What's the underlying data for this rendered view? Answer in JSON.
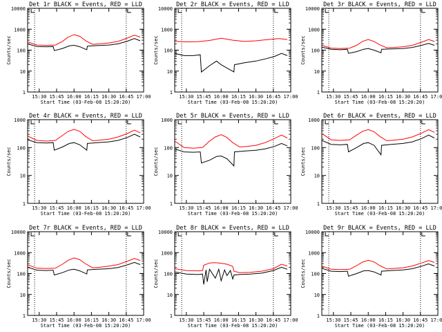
{
  "chart_data": [
    {
      "type": "line",
      "title": "Det 1r BLACK = Events, RED = LLD",
      "xlabel": "Start Time (03-Feb-08 15:20:20)",
      "ylabel": "Counts/sec",
      "yscale": "log",
      "ylim": [
        1,
        10000
      ],
      "xlim": [
        "15:20",
        "17:00"
      ],
      "x_ticks": [
        "15:30",
        "15:45",
        "16:00",
        "16:15",
        "16:30",
        "16:45",
        "17:00"
      ],
      "y_ticks": [
        "1",
        "10",
        "100",
        "1000",
        "10000"
      ],
      "markers": [
        "15:26",
        "16:45"
      ],
      "grid": false,
      "legend": "none",
      "series": [
        {
          "color": "#ff0000",
          "x": [
            "15:20",
            "15:28",
            "15:36",
            "15:44",
            "15:50",
            "15:55",
            "16:00",
            "16:05",
            "16:10",
            "16:16",
            "16:22",
            "16:30",
            "16:38",
            "16:46",
            "16:52",
            "16:57"
          ],
          "values": [
            250,
            175,
            170,
            175,
            260,
            420,
            550,
            460,
            280,
            190,
            200,
            220,
            260,
            380,
            520,
            420
          ]
        },
        {
          "color": "#000000",
          "x": [
            "15:20",
            "15:28",
            "15:36",
            "15:42",
            "15:43",
            "15:50",
            "15:56",
            "16:00",
            "16:05",
            "16:11",
            "16:11.5",
            "16:20",
            "16:30",
            "16:38",
            "16:46",
            "16:52",
            "16:57"
          ],
          "values": [
            200,
            150,
            145,
            150,
            95,
            120,
            160,
            170,
            145,
            105,
            155,
            165,
            175,
            200,
            270,
            360,
            280
          ]
        }
      ]
    },
    {
      "type": "line",
      "title": "Det 2r BLACK = Events, RED = LLD",
      "xlabel": "Start Time (03-Feb-08 15:20:20)",
      "ylabel": "Counts/sec",
      "yscale": "log",
      "ylim": [
        1,
        10000
      ],
      "xlim": [
        "15:20",
        "17:00"
      ],
      "x_ticks": [
        "15:30",
        "15:45",
        "16:00",
        "16:15",
        "16:30",
        "16:45",
        "17:00"
      ],
      "y_ticks": [
        "1",
        "10",
        "100",
        "1000",
        "10000"
      ],
      "markers": [
        "15:26",
        "16:45"
      ],
      "grid": false,
      "legend": "none",
      "series": [
        {
          "color": "#ff0000",
          "x": [
            "15:20",
            "15:30",
            "15:40",
            "15:50",
            "16:00",
            "16:10",
            "16:20",
            "16:30",
            "16:40",
            "16:50",
            "16:57"
          ],
          "values": [
            260,
            250,
            255,
            290,
            370,
            300,
            260,
            280,
            320,
            360,
            320
          ]
        },
        {
          "color": "#000000",
          "x": [
            "15:20",
            "15:28",
            "15:36",
            "15:42",
            "15:43",
            "15:50",
            "15:56",
            "16:00",
            "16:05",
            "16:11",
            "16:11.5",
            "16:20",
            "16:30",
            "16:38",
            "16:46",
            "16:52",
            "16:57"
          ],
          "values": [
            70,
            55,
            55,
            60,
            9,
            18,
            30,
            20,
            14,
            9,
            20,
            25,
            30,
            38,
            50,
            70,
            55
          ]
        }
      ]
    },
    {
      "type": "line",
      "title": "Det 3r BLACK = Events, RED = LLD",
      "xlabel": "Start Time (03-Feb-08 15:20:20)",
      "ylabel": "Counts/sec",
      "yscale": "log",
      "ylim": [
        1,
        10000
      ],
      "xlim": [
        "15:20",
        "17:00"
      ],
      "x_ticks": [
        "15:30",
        "15:45",
        "16:00",
        "16:15",
        "16:30",
        "16:45",
        "17:00"
      ],
      "y_ticks": [
        "1",
        "10",
        "100",
        "1000",
        "10000"
      ],
      "markers": [
        "15:26",
        "16:45"
      ],
      "grid": false,
      "legend": "none",
      "series": [
        {
          "color": "#ff0000",
          "x": [
            "15:20",
            "15:28",
            "15:36",
            "15:44",
            "15:50",
            "15:55",
            "16:00",
            "16:05",
            "16:10",
            "16:16",
            "16:22",
            "16:30",
            "16:38",
            "16:46",
            "16:52",
            "16:57"
          ],
          "values": [
            170,
            125,
            120,
            125,
            170,
            260,
            320,
            260,
            180,
            130,
            135,
            145,
            170,
            240,
            320,
            260
          ]
        },
        {
          "color": "#000000",
          "x": [
            "15:20",
            "15:28",
            "15:36",
            "15:42",
            "15:43",
            "15:50",
            "15:56",
            "16:00",
            "16:05",
            "16:11",
            "16:11.5",
            "16:20",
            "16:30",
            "16:38",
            "16:46",
            "16:52",
            "16:57"
          ],
          "values": [
            140,
            110,
            105,
            110,
            70,
            85,
            110,
            120,
            100,
            75,
            110,
            115,
            120,
            135,
            170,
            210,
            170
          ]
        }
      ]
    },
    {
      "type": "line",
      "title": "Det 4r BLACK = Events, RED = LLD",
      "xlabel": "Start Time (03-Feb-08 15:20:20)",
      "ylabel": "Counts/sec",
      "yscale": "log",
      "ylim": [
        1,
        1000
      ],
      "xlim": [
        "15:20",
        "17:00"
      ],
      "x_ticks": [
        "15:30",
        "15:45",
        "16:00",
        "16:15",
        "16:30",
        "16:45",
        "17:00"
      ],
      "y_ticks": [
        "1",
        "10",
        "100",
        "1000"
      ],
      "markers": [
        "15:26",
        "16:45"
      ],
      "grid": false,
      "legend": "none",
      "series": [
        {
          "color": "#ff0000",
          "x": [
            "15:20",
            "15:28",
            "15:36",
            "15:44",
            "15:50",
            "15:55",
            "16:00",
            "16:05",
            "16:10",
            "16:16",
            "16:22",
            "16:30",
            "16:38",
            "16:46",
            "16:52",
            "16:57"
          ],
          "values": [
            260,
            180,
            170,
            180,
            270,
            380,
            450,
            380,
            250,
            175,
            185,
            200,
            240,
            320,
            420,
            340
          ]
        },
        {
          "color": "#000000",
          "x": [
            "15:20",
            "15:28",
            "15:36",
            "15:42",
            "15:43",
            "15:50",
            "15:56",
            "16:00",
            "16:05",
            "16:11",
            "16:11.5",
            "16:20",
            "16:30",
            "16:38",
            "16:46",
            "16:52",
            "16:57"
          ],
          "values": [
            190,
            150,
            145,
            150,
            80,
            105,
            140,
            150,
            125,
            80,
            140,
            150,
            160,
            180,
            230,
            300,
            240
          ]
        }
      ]
    },
    {
      "type": "line",
      "title": "Det 5r BLACK = Events, RED = LLD",
      "xlabel": "Start Time (03-Feb-08 15:20:20)",
      "ylabel": "Counts/sec",
      "yscale": "log",
      "ylim": [
        1,
        1000
      ],
      "xlim": [
        "15:20",
        "17:00"
      ],
      "x_ticks": [
        "15:30",
        "15:45",
        "16:00",
        "16:15",
        "16:30",
        "16:45",
        "17:00"
      ],
      "y_ticks": [
        "1",
        "10",
        "100",
        "1000"
      ],
      "markers": [
        "15:26",
        "16:45"
      ],
      "grid": false,
      "legend": "none",
      "series": [
        {
          "color": "#ff0000",
          "x": [
            "15:20",
            "15:28",
            "15:36",
            "15:44",
            "15:50",
            "15:55",
            "16:00",
            "16:05",
            "16:10",
            "16:16",
            "16:22",
            "16:30",
            "16:38",
            "16:46",
            "16:52",
            "16:57"
          ],
          "values": [
            170,
            100,
            95,
            100,
            170,
            240,
            290,
            230,
            150,
            105,
            110,
            120,
            150,
            210,
            280,
            220
          ]
        },
        {
          "color": "#000000",
          "x": [
            "15:20",
            "15:28",
            "15:36",
            "15:42",
            "15:43",
            "15:50",
            "15:56",
            "16:00",
            "16:05",
            "16:11",
            "16:11.5",
            "16:20",
            "16:30",
            "16:38",
            "16:46",
            "16:52",
            "16:57"
          ],
          "values": [
            90,
            70,
            68,
            70,
            28,
            35,
            48,
            50,
            40,
            22,
            70,
            75,
            80,
            90,
            110,
            140,
            115
          ]
        }
      ]
    },
    {
      "type": "line",
      "title": "Det 6r BLACK = Events, RED = LLD",
      "xlabel": "Start Time (03-Feb-08 15:20:20)",
      "ylabel": "Counts/sec",
      "yscale": "log",
      "ylim": [
        1,
        1000
      ],
      "xlim": [
        "15:20",
        "17:00"
      ],
      "x_ticks": [
        "15:30",
        "15:45",
        "16:00",
        "16:15",
        "16:30",
        "16:45",
        "17:00"
      ],
      "y_ticks": [
        "1",
        "10",
        "100",
        "1000"
      ],
      "markers": [
        "15:26",
        "16:45"
      ],
      "grid": false,
      "legend": "none",
      "series": [
        {
          "color": "#ff0000",
          "x": [
            "15:20",
            "15:28",
            "15:36",
            "15:44",
            "15:50",
            "15:55",
            "16:00",
            "16:05",
            "16:10",
            "16:16",
            "16:22",
            "16:30",
            "16:38",
            "16:46",
            "16:52",
            "16:57"
          ],
          "values": [
            320,
            190,
            180,
            190,
            280,
            380,
            440,
            370,
            250,
            175,
            185,
            200,
            240,
            330,
            440,
            350
          ]
        },
        {
          "color": "#000000",
          "x": [
            "15:20",
            "15:28",
            "15:36",
            "15:42",
            "15:43",
            "15:50",
            "15:56",
            "16:00",
            "16:05",
            "16:11",
            "16:11.5",
            "16:20",
            "16:30",
            "16:38",
            "16:46",
            "16:52",
            "16:57"
          ],
          "values": [
            180,
            130,
            125,
            130,
            70,
            100,
            140,
            150,
            120,
            55,
            120,
            130,
            140,
            160,
            210,
            280,
            220
          ]
        }
      ]
    },
    {
      "type": "line",
      "title": "Det 7r BLACK = Events, RED = LLD",
      "xlabel": "Start Time (03-Feb-08 15:20:20)",
      "ylabel": "Counts/sec",
      "yscale": "log",
      "ylim": [
        1,
        10000
      ],
      "xlim": [
        "15:20",
        "17:00"
      ],
      "x_ticks": [
        "15:30",
        "15:45",
        "16:00",
        "16:15",
        "16:30",
        "16:45",
        "17:00"
      ],
      "y_ticks": [
        "1",
        "10",
        "100",
        "1000",
        "10000"
      ],
      "markers": [
        "15:26",
        "16:45"
      ],
      "grid": false,
      "legend": "none",
      "series": [
        {
          "color": "#ff0000",
          "x": [
            "15:20",
            "15:28",
            "15:36",
            "15:44",
            "15:50",
            "15:55",
            "16:00",
            "16:05",
            "16:10",
            "16:16",
            "16:22",
            "16:30",
            "16:38",
            "16:46",
            "16:52",
            "16:57"
          ],
          "values": [
            260,
            180,
            175,
            180,
            280,
            430,
            560,
            460,
            290,
            190,
            200,
            225,
            270,
            390,
            530,
            420
          ]
        },
        {
          "color": "#000000",
          "x": [
            "15:20",
            "15:28",
            "15:36",
            "15:42",
            "15:43",
            "15:50",
            "15:56",
            "16:00",
            "16:05",
            "16:11",
            "16:11.5",
            "16:20",
            "16:30",
            "16:38",
            "16:46",
            "16:52",
            "16:57"
          ],
          "values": [
            200,
            145,
            140,
            145,
            85,
            110,
            150,
            160,
            135,
            95,
            150,
            160,
            170,
            195,
            260,
            340,
            270
          ]
        }
      ]
    },
    {
      "type": "line",
      "title": "Det 8r BLACK = Events, RED = LLD",
      "xlabel": "Start Time (03-Feb-08 15:20:20)",
      "ylabel": "Counts/sec",
      "yscale": "log",
      "ylim": [
        1,
        10000
      ],
      "xlim": [
        "15:20",
        "17:00"
      ],
      "x_ticks": [
        "15:30",
        "15:45",
        "16:00",
        "16:15",
        "16:30",
        "16:45",
        "17:00"
      ],
      "y_ticks": [
        "1",
        "10",
        "100",
        "1000",
        "10000"
      ],
      "markers": [
        "15:26",
        "16:45"
      ],
      "grid": false,
      "legend": "none",
      "series": [
        {
          "color": "#ff0000",
          "x": [
            "15:20",
            "15:30",
            "15:40",
            "15:44",
            "15:45",
            "15:50",
            "15:55",
            "16:00",
            "16:05",
            "16:10",
            "16:11",
            "16:16",
            "16:25",
            "16:35",
            "16:45",
            "16:52",
            "16:57"
          ],
          "values": [
            170,
            140,
            135,
            140,
            250,
            320,
            330,
            310,
            280,
            220,
            130,
            110,
            115,
            130,
            170,
            280,
            230
          ]
        },
        {
          "color": "#000000",
          "x": [
            "15:20",
            "15:30",
            "15:40",
            "15:44",
            "15:45",
            "15:47",
            "15:48",
            "15:50",
            "15:55",
            "15:58",
            "16:00",
            "16:03",
            "16:05",
            "16:08",
            "16:10",
            "16:11",
            "16:16",
            "16:25",
            "16:35",
            "16:45",
            "16:52",
            "16:57"
          ],
          "values": [
            120,
            95,
            90,
            95,
            30,
            150,
            40,
            160,
            60,
            160,
            45,
            150,
            80,
            140,
            55,
            85,
            90,
            95,
            105,
            140,
            200,
            160
          ]
        }
      ]
    },
    {
      "type": "line",
      "title": "Det 9r BLACK = Events, RED = LLD",
      "xlabel": "Start Time (03-Feb-08 15:20:20)",
      "ylabel": "Counts/sec",
      "yscale": "log",
      "ylim": [
        1,
        10000
      ],
      "xlim": [
        "15:20",
        "17:00"
      ],
      "x_ticks": [
        "15:30",
        "15:45",
        "16:00",
        "16:15",
        "16:30",
        "16:45",
        "17:00"
      ],
      "y_ticks": [
        "1",
        "10",
        "100",
        "1000",
        "10000"
      ],
      "markers": [
        "15:26",
        "16:45"
      ],
      "grid": false,
      "legend": "none",
      "series": [
        {
          "color": "#ff0000",
          "x": [
            "15:20",
            "15:28",
            "15:36",
            "15:44",
            "15:50",
            "15:55",
            "16:00",
            "16:05",
            "16:10",
            "16:16",
            "16:22",
            "16:30",
            "16:38",
            "16:46",
            "16:52",
            "16:57"
          ],
          "values": [
            230,
            160,
            155,
            160,
            240,
            350,
            430,
            360,
            240,
            165,
            175,
            190,
            230,
            320,
            420,
            340
          ]
        },
        {
          "color": "#000000",
          "x": [
            "15:20",
            "15:28",
            "15:36",
            "15:42",
            "15:43",
            "15:50",
            "15:56",
            "16:00",
            "16:05",
            "16:11",
            "16:11.5",
            "16:20",
            "16:30",
            "16:38",
            "16:46",
            "16:52",
            "16:57"
          ],
          "values": [
            180,
            130,
            125,
            130,
            75,
            100,
            135,
            140,
            120,
            85,
            130,
            140,
            150,
            170,
            225,
            290,
            230
          ]
        }
      ]
    }
  ]
}
